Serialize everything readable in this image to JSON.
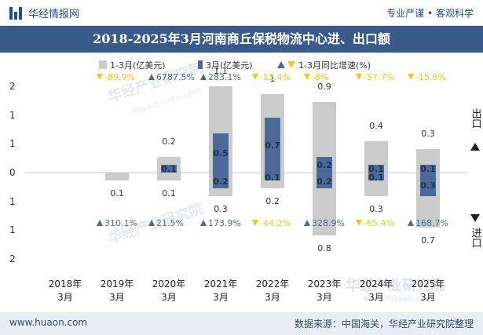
{
  "header": {
    "brand": "华经情报网",
    "tagline": "专业严谨 • 客观科学"
  },
  "title": "2018-2025年3月河南商丘保税物流中心进、出口额",
  "legend": {
    "cum": "1-3月(亿美元)",
    "mar": "3月(亿美元)",
    "yoy": "1-3月同比增速(%)"
  },
  "side_labels": {
    "export": "出口",
    "import": "进口"
  },
  "watermark": "华经产业研究院",
  "watermark_url": "www.huaon.com",
  "footer": {
    "site": "www.huaon.com",
    "source": "数据来源：中国海关，华经产业研究院整理"
  },
  "colors": {
    "cum": "#cbcbcb",
    "mar": "#4b6a99",
    "up": "#4b6a99",
    "down": "#f5c518"
  },
  "chart_data": {
    "type": "bar",
    "categories": [
      "2018年\n3月",
      "2019年\n3月",
      "2020年\n3月",
      "2021年\n3月",
      "2022年\n3月",
      "2023年\n3月",
      "2024年\n3月",
      "2025年\n3月"
    ],
    "y_tick_labels": [
      "2",
      "1",
      "1",
      "0",
      "1",
      "1",
      "2"
    ],
    "series": [
      {
        "name": "出口 1-3月(亿美元)",
        "values": [
          null,
          null,
          0.2,
          1.1,
          1,
          0.9,
          0.4,
          0.3
        ]
      },
      {
        "name": "出口 3月(亿美元)",
        "values": [
          null,
          null,
          0.1,
          0.5,
          0.7,
          0.2,
          0.1,
          0.1
        ]
      },
      {
        "name": "进口 1-3月(亿美元)",
        "values": [
          null,
          0.1,
          0.1,
          0.3,
          0.2,
          0.8,
          0.3,
          0.7
        ]
      },
      {
        "name": "进口 3月(亿美元)",
        "values": [
          null,
          null,
          null,
          0.2,
          0.1,
          0.2,
          0.1,
          0.3
        ]
      }
    ],
    "export_yoy": [
      null,
      -89.9,
      6787.5,
      283.1,
      -12.4,
      -8,
      -57.7,
      -15.6
    ],
    "import_yoy": [
      null,
      310.1,
      21.5,
      173.9,
      -44.2,
      328.9,
      -65.4,
      168.7
    ],
    "export_yoy_labels": [
      "",
      "-89.9%",
      "6787.5%",
      "283.1%",
      "-12.4%",
      "-8%",
      "-57.7%",
      "-15.6%"
    ],
    "import_yoy_labels": [
      "",
      "310.1%",
      "21.5%",
      "173.9%",
      "-44.2%",
      "328.9%",
      "-65.4%",
      "168.7%"
    ],
    "export_cum_labels": [
      "",
      "",
      "0.2",
      "1.1",
      "1",
      "0.9",
      "0.4",
      "0.3"
    ],
    "export_mar_labels": [
      "",
      "",
      "0.1",
      "0.5",
      "0.7",
      "0.2",
      "0.1",
      "0.1"
    ],
    "import_cum_labels": [
      "",
      "0.1",
      "0.1",
      "0.3",
      "0.2",
      "0.8",
      "0.3",
      "0.7"
    ],
    "import_mar_labels": [
      "",
      "",
      "",
      "0.2",
      "0.1",
      "0.2",
      "0.1",
      "0.3"
    ],
    "grid": false
  }
}
